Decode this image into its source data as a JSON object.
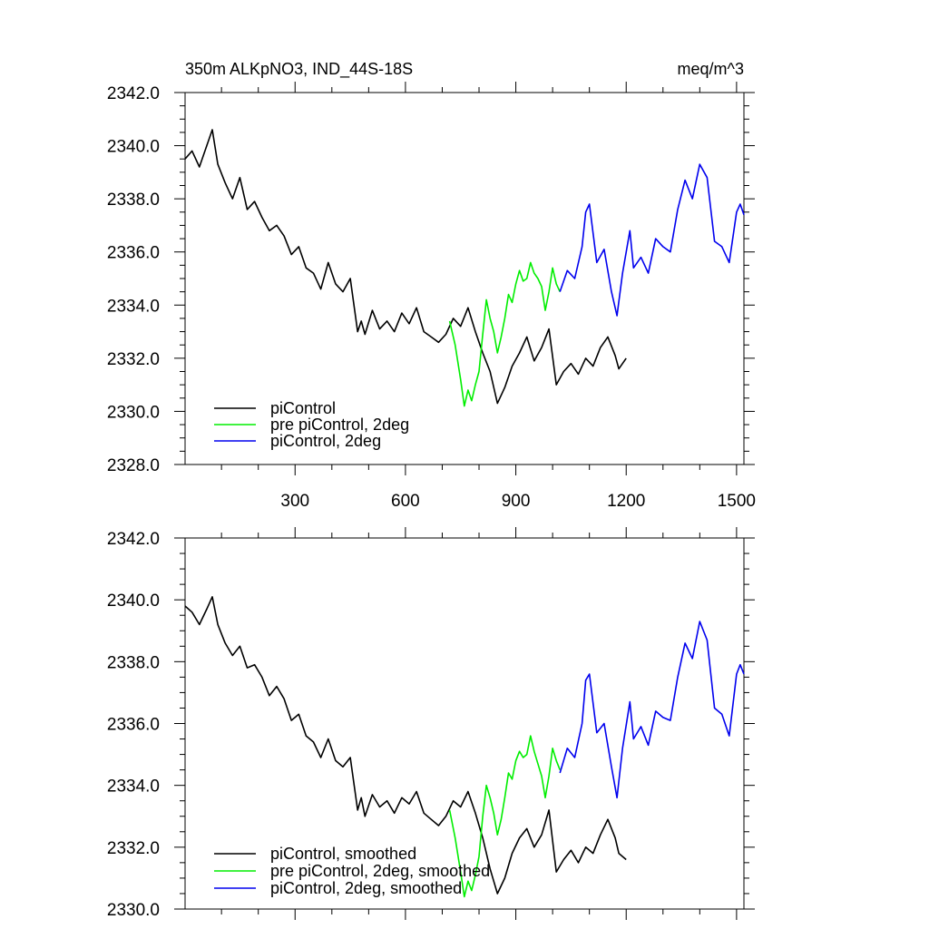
{
  "colors": {
    "piControl": "#000000",
    "pre_piControl_2deg": "#00ee00",
    "piControl_2deg": "#0000ee"
  },
  "chart_data": [
    {
      "type": "line",
      "title": "350m ALKpNO3, IND_44S-18S",
      "units": "meq/m^3",
      "xlim": [
        1,
        1520
      ],
      "ylim": [
        2328.0,
        2342.0
      ],
      "x_tick_labels": [
        "300",
        "600",
        "900",
        "1200",
        "1500"
      ],
      "x_ticks": [
        300,
        600,
        900,
        1200,
        1500
      ],
      "y_tick_labels": [
        "2328.0",
        "2330.0",
        "2332.0",
        "2334.0",
        "2336.0",
        "2338.0",
        "2340.0",
        "2342.0"
      ],
      "y_ticks": [
        2328,
        2330,
        2332,
        2334,
        2336,
        2338,
        2340,
        2342
      ],
      "grid": false,
      "legend_position": "bottom-left",
      "series": [
        {
          "name": "piControl",
          "color": "#000000",
          "x": [
            1,
            20,
            40,
            60,
            75,
            90,
            110,
            130,
            150,
            170,
            190,
            210,
            230,
            250,
            270,
            290,
            310,
            330,
            350,
            370,
            390,
            410,
            430,
            450,
            470,
            480,
            490,
            510,
            530,
            550,
            570,
            590,
            610,
            630,
            650,
            670,
            690,
            710,
            730,
            750,
            770,
            790,
            810,
            830,
            850,
            870,
            890,
            910,
            930,
            950,
            970,
            990,
            1010,
            1030,
            1050,
            1070,
            1090,
            1110,
            1130,
            1150,
            1170,
            1180,
            1200
          ],
          "y": [
            2339.5,
            2339.8,
            2339.2,
            2340.0,
            2340.6,
            2339.3,
            2338.6,
            2338.0,
            2338.8,
            2337.6,
            2337.9,
            2337.3,
            2336.8,
            2337.0,
            2336.6,
            2335.9,
            2336.2,
            2335.4,
            2335.2,
            2334.6,
            2335.6,
            2334.8,
            2334.5,
            2335.0,
            2333.0,
            2333.4,
            2332.9,
            2333.8,
            2333.1,
            2333.4,
            2333.0,
            2333.7,
            2333.3,
            2333.9,
            2333.0,
            2332.8,
            2332.6,
            2332.9,
            2333.5,
            2333.2,
            2333.9,
            2333.0,
            2332.2,
            2331.5,
            2330.3,
            2330.9,
            2331.7,
            2332.2,
            2332.8,
            2331.9,
            2332.4,
            2333.1,
            2331.0,
            2331.5,
            2331.8,
            2331.4,
            2332.0,
            2331.7,
            2332.4,
            2332.8,
            2332.1,
            2331.6,
            2332.0
          ]
        },
        {
          "name": "pre piControl, 2deg",
          "color": "#00ee00",
          "x": [
            720,
            735,
            750,
            760,
            770,
            780,
            790,
            800,
            810,
            820,
            830,
            840,
            850,
            860,
            870,
            880,
            890,
            900,
            910,
            920,
            930,
            940,
            950,
            960,
            970,
            980,
            990,
            1000,
            1010,
            1020
          ],
          "y": [
            2333.4,
            2332.5,
            2331.2,
            2330.2,
            2330.8,
            2330.4,
            2331.0,
            2331.5,
            2332.9,
            2334.2,
            2333.5,
            2333.0,
            2332.2,
            2332.8,
            2333.5,
            2334.4,
            2334.1,
            2334.8,
            2335.3,
            2334.9,
            2335.0,
            2335.6,
            2335.2,
            2335.0,
            2334.7,
            2333.8,
            2334.5,
            2335.4,
            2334.8,
            2334.5
          ]
        },
        {
          "name": "piControl, 2deg",
          "color": "#0000ee",
          "x": [
            1020,
            1040,
            1060,
            1080,
            1090,
            1100,
            1120,
            1140,
            1160,
            1175,
            1190,
            1210,
            1220,
            1240,
            1260,
            1280,
            1300,
            1320,
            1340,
            1360,
            1380,
            1400,
            1420,
            1440,
            1460,
            1480,
            1500,
            1510,
            1520
          ],
          "y": [
            2334.5,
            2335.3,
            2335.0,
            2336.2,
            2337.5,
            2337.8,
            2335.6,
            2336.1,
            2334.5,
            2333.6,
            2335.2,
            2336.8,
            2335.4,
            2335.8,
            2335.2,
            2336.5,
            2336.2,
            2336.0,
            2337.6,
            2338.7,
            2338.0,
            2339.3,
            2338.8,
            2336.4,
            2336.2,
            2335.6,
            2337.5,
            2337.8,
            2337.4
          ]
        }
      ]
    },
    {
      "type": "line",
      "title": "",
      "xlim": [
        1,
        1520
      ],
      "ylim": [
        2330.0,
        2342.0
      ],
      "x_ticks": [
        300,
        600,
        900,
        1200,
        1500
      ],
      "y_tick_labels": [
        "2330.0",
        "2332.0",
        "2334.0",
        "2336.0",
        "2338.0",
        "2340.0",
        "2342.0"
      ],
      "y_ticks": [
        2330,
        2332,
        2334,
        2336,
        2338,
        2340,
        2342
      ],
      "grid": false,
      "legend_position": "bottom-left",
      "series": [
        {
          "name": "piControl, smoothed",
          "color": "#000000",
          "x": [
            1,
            20,
            40,
            60,
            75,
            90,
            110,
            130,
            150,
            170,
            190,
            210,
            230,
            250,
            270,
            290,
            310,
            330,
            350,
            370,
            390,
            410,
            430,
            450,
            470,
            480,
            490,
            510,
            530,
            550,
            570,
            590,
            610,
            630,
            650,
            670,
            690,
            710,
            730,
            750,
            770,
            790,
            810,
            830,
            850,
            870,
            890,
            910,
            930,
            950,
            970,
            990,
            1010,
            1030,
            1050,
            1070,
            1090,
            1110,
            1130,
            1150,
            1170,
            1180,
            1200
          ],
          "y": [
            2339.8,
            2339.6,
            2339.2,
            2339.7,
            2340.1,
            2339.2,
            2338.6,
            2338.2,
            2338.5,
            2337.8,
            2337.9,
            2337.5,
            2336.9,
            2337.2,
            2336.8,
            2336.1,
            2336.3,
            2335.6,
            2335.4,
            2334.9,
            2335.5,
            2334.8,
            2334.6,
            2334.9,
            2333.2,
            2333.6,
            2333.0,
            2333.7,
            2333.3,
            2333.5,
            2333.1,
            2333.6,
            2333.4,
            2333.8,
            2333.1,
            2332.9,
            2332.7,
            2333.0,
            2333.5,
            2333.3,
            2333.8,
            2333.1,
            2332.3,
            2331.3,
            2330.5,
            2331.0,
            2331.8,
            2332.3,
            2332.6,
            2332.0,
            2332.4,
            2333.2,
            2331.2,
            2331.6,
            2331.9,
            2331.5,
            2332.0,
            2331.8,
            2332.4,
            2332.9,
            2332.3,
            2331.8,
            2331.6
          ]
        },
        {
          "name": "pre piControl, 2deg, smoothed",
          "color": "#00ee00",
          "x": [
            720,
            735,
            750,
            760,
            770,
            780,
            790,
            800,
            810,
            820,
            830,
            840,
            850,
            860,
            870,
            880,
            890,
            900,
            910,
            920,
            930,
            940,
            950,
            960,
            970,
            980,
            990,
            1000,
            1010,
            1020
          ],
          "y": [
            2333.2,
            2332.3,
            2331.2,
            2330.4,
            2330.9,
            2330.6,
            2331.1,
            2331.7,
            2333.0,
            2334.0,
            2333.6,
            2333.1,
            2332.4,
            2332.9,
            2333.6,
            2334.4,
            2334.2,
            2334.8,
            2335.1,
            2334.9,
            2335.0,
            2335.6,
            2335.1,
            2334.7,
            2334.3,
            2333.6,
            2334.3,
            2335.2,
            2334.8,
            2334.5
          ]
        },
        {
          "name": "piControl, 2deg, smoothed",
          "color": "#0000ee",
          "x": [
            1020,
            1040,
            1060,
            1080,
            1090,
            1100,
            1120,
            1140,
            1160,
            1175,
            1190,
            1210,
            1220,
            1240,
            1260,
            1280,
            1300,
            1320,
            1340,
            1360,
            1380,
            1400,
            1420,
            1440,
            1460,
            1480,
            1500,
            1510,
            1520
          ],
          "y": [
            2334.4,
            2335.2,
            2334.9,
            2336.0,
            2337.4,
            2337.6,
            2335.7,
            2336.0,
            2334.6,
            2333.6,
            2335.2,
            2336.7,
            2335.5,
            2335.9,
            2335.3,
            2336.4,
            2336.2,
            2336.1,
            2337.5,
            2338.6,
            2338.1,
            2339.3,
            2338.7,
            2336.5,
            2336.3,
            2335.6,
            2337.6,
            2337.9,
            2337.6
          ]
        }
      ]
    }
  ]
}
